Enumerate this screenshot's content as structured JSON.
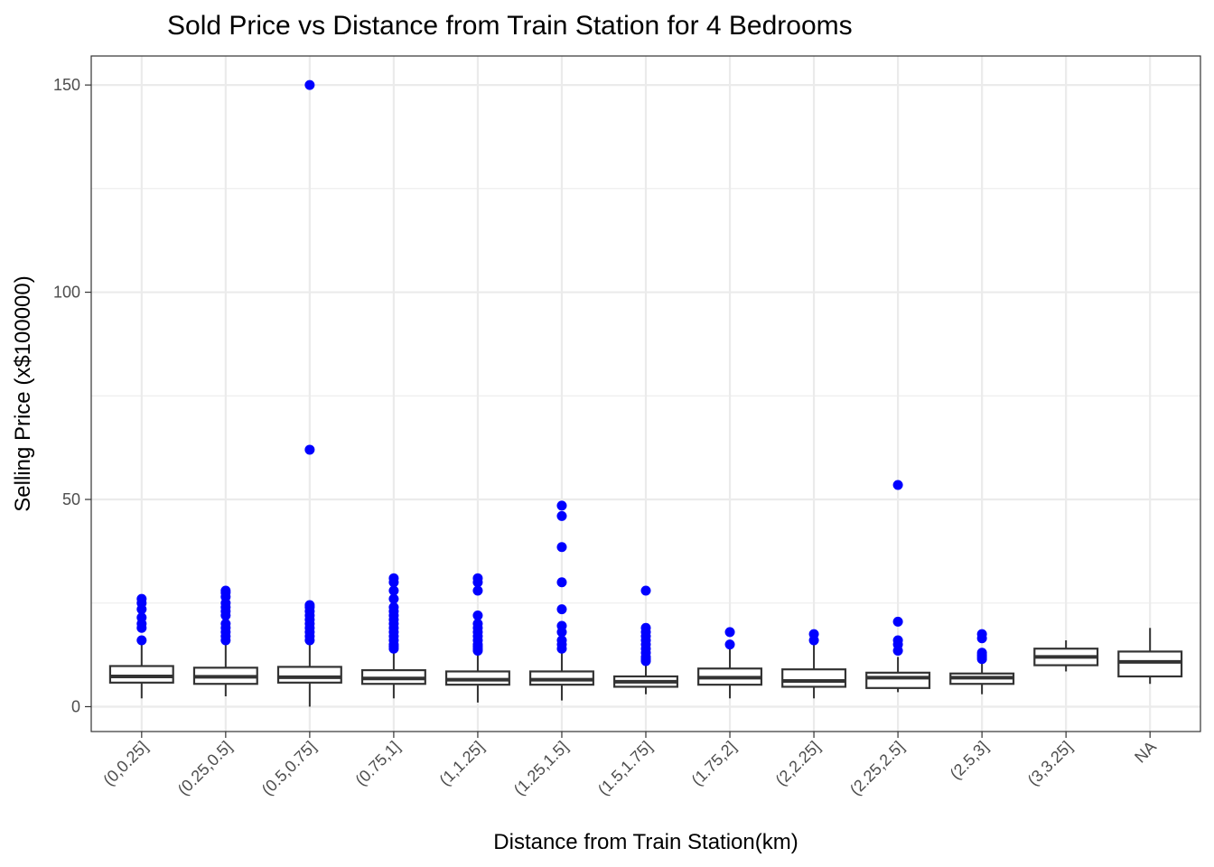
{
  "chart_data": {
    "type": "boxplot",
    "title": "Sold Price vs Distance from Train Station for 4 Bedrooms",
    "xlabel": "Distance from Train Station(km)",
    "ylabel": "Selling Price (x$100000)",
    "ylim": [
      -6,
      157
    ],
    "yticks": [
      0,
      50,
      100,
      150
    ],
    "grid": true,
    "colors": {
      "outlier": "#0000ff",
      "box_stroke": "#333333",
      "grid": "#ebebeb",
      "panel_border": "#333333"
    },
    "categories": [
      "(0,0.25]",
      "(0.25,0.5]",
      "(0.5,0.75]",
      "(0.75,1]",
      "(1,1.25]",
      "(1.25,1.5]",
      "(1.5,1.75]",
      "(1.75,2]",
      "(2,2.25]",
      "(2.25,2.5]",
      "(2.5,3]",
      "(3,3.25]",
      "NA"
    ],
    "boxes": [
      {
        "category": "(0,0.25]",
        "min": 2.0,
        "q1": 5.8,
        "median": 7.3,
        "q3": 9.8,
        "max": 15.5,
        "outliers": [
          16,
          19,
          20,
          21.5,
          23.5,
          25,
          26
        ]
      },
      {
        "category": "(0.25,0.5]",
        "min": 2.5,
        "q1": 5.5,
        "median": 7.2,
        "q3": 9.4,
        "max": 15.0,
        "outliers": [
          16,
          17,
          18,
          19,
          20,
          22,
          23,
          24,
          25,
          26.5,
          27.5,
          28
        ]
      },
      {
        "category": "(0.5,0.75]",
        "min": 0.0,
        "q1": 5.8,
        "median": 7.1,
        "q3": 9.6,
        "max": 15.5,
        "outliers": [
          16,
          17,
          18,
          19,
          20,
          21,
          22,
          23,
          24,
          24.5,
          62,
          150
        ]
      },
      {
        "category": "(0.75,1]",
        "min": 2.0,
        "q1": 5.5,
        "median": 6.8,
        "q3": 8.8,
        "max": 13.8,
        "outliers": [
          14,
          14.5,
          15,
          16,
          17,
          18,
          19,
          20,
          21,
          22,
          23,
          24,
          26,
          28,
          30,
          31
        ]
      },
      {
        "category": "(1,1.25]",
        "min": 1.0,
        "q1": 5.3,
        "median": 6.5,
        "q3": 8.5,
        "max": 13.0,
        "outliers": [
          13.5,
          14,
          14.5,
          15,
          16,
          17,
          18,
          19,
          20,
          22,
          28,
          30,
          31
        ]
      },
      {
        "category": "(1.25,1.5]",
        "min": 1.5,
        "q1": 5.3,
        "median": 6.5,
        "q3": 8.5,
        "max": 13.3,
        "outliers": [
          14,
          15,
          16,
          18,
          19.5,
          23.5,
          30,
          38.5,
          46,
          48.5
        ]
      },
      {
        "category": "(1.5,1.75]",
        "min": 3.0,
        "q1": 4.8,
        "median": 6.0,
        "q3": 7.3,
        "max": 10.5,
        "outliers": [
          11,
          11.5,
          12,
          13,
          14,
          15,
          16,
          17,
          18,
          19,
          28
        ]
      },
      {
        "category": "(1.75,2]",
        "min": 2.0,
        "q1": 5.3,
        "median": 7.0,
        "q3": 9.2,
        "max": 14.0,
        "outliers": [
          15,
          18
        ]
      },
      {
        "category": "(2,2.25]",
        "min": 2.0,
        "q1": 4.8,
        "median": 6.2,
        "q3": 9.0,
        "max": 15.0,
        "outliers": [
          16,
          17.5
        ]
      },
      {
        "category": "(2.25,2.5]",
        "min": 3.5,
        "q1": 4.5,
        "median": 7.0,
        "q3": 8.2,
        "max": 12.0,
        "outliers": [
          13.5,
          15,
          16,
          20.5,
          53.5
        ]
      },
      {
        "category": "(2.5,3]",
        "min": 3.0,
        "q1": 5.5,
        "median": 7.0,
        "q3": 8.0,
        "max": 10.5,
        "outliers": [
          11.5,
          12,
          12.5,
          13,
          16.5,
          17.5
        ]
      },
      {
        "category": "(3,3.25]",
        "min": 8.5,
        "q1": 10.0,
        "median": 12.0,
        "q3": 14.0,
        "max": 16.0,
        "outliers": []
      },
      {
        "category": "NA",
        "min": 5.5,
        "q1": 7.3,
        "median": 10.8,
        "q3": 13.3,
        "max": 19.0,
        "outliers": []
      }
    ]
  }
}
